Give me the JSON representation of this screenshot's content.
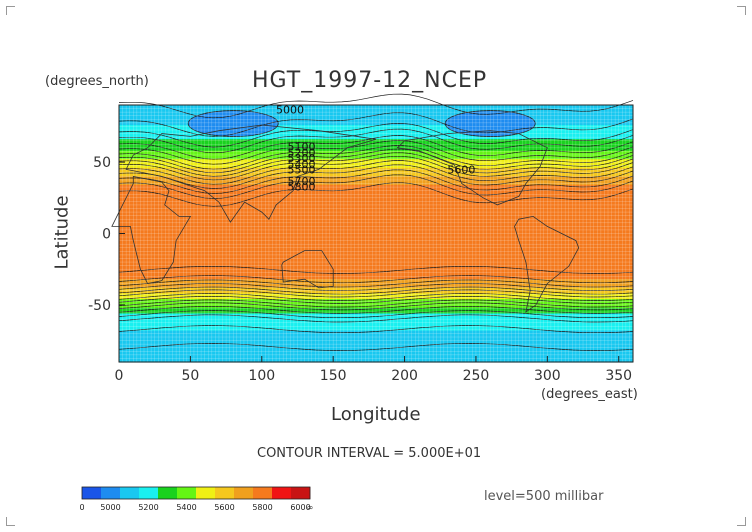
{
  "chart_data": {
    "type": "heatmap",
    "title": "HGT_1997-12_NCEP",
    "xlabel": "Longitude",
    "ylabel": "Latitude",
    "x_units": "(degrees_east)",
    "y_units": "(degrees_north)",
    "xlim": [
      0,
      360
    ],
    "ylim": [
      -90,
      90
    ],
    "x_ticks": [
      0,
      50,
      100,
      150,
      200,
      250,
      300,
      350
    ],
    "y_ticks": [
      50,
      0,
      -50
    ],
    "contour_interval_text": "CONTOUR INTERVAL = 5.000E+01",
    "level_text": "level=500 millibar",
    "contour_labels": [
      "5000",
      "5100",
      "5200",
      "5300",
      "5400",
      "5500",
      "5600",
      "5700",
      "5800"
    ],
    "colorbar": {
      "labels": [
        "0",
        "5000",
        "5200",
        "5400",
        "5600",
        "5800",
        "6000",
        "∞"
      ],
      "bins": [
        {
          "color": "#1a55e8"
        },
        {
          "color": "#1e8cf0"
        },
        {
          "color": "#19c8f0"
        },
        {
          "color": "#19f0f0"
        },
        {
          "color": "#19d21e"
        },
        {
          "color": "#64f514"
        },
        {
          "color": "#f0f014"
        },
        {
          "color": "#f5c81e"
        },
        {
          "color": "#f0a01e"
        },
        {
          "color": "#f57a1e"
        },
        {
          "color": "#f01414"
        },
        {
          "color": "#c81414"
        }
      ]
    },
    "lat_profile": [
      {
        "lat": 90,
        "hgt": 5150
      },
      {
        "lat": 80,
        "hgt": 5180
      },
      {
        "lat": 70,
        "hgt": 5240
      },
      {
        "lat": 60,
        "hgt": 5360
      },
      {
        "lat": 55,
        "hgt": 5430
      },
      {
        "lat": 50,
        "hgt": 5520
      },
      {
        "lat": 45,
        "hgt": 5620
      },
      {
        "lat": 40,
        "hgt": 5700
      },
      {
        "lat": 35,
        "hgt": 5780
      },
      {
        "lat": 30,
        "hgt": 5840
      },
      {
        "lat": 20,
        "hgt": 5880
      },
      {
        "lat": 0,
        "hgt": 5880
      },
      {
        "lat": -20,
        "hgt": 5880
      },
      {
        "lat": -30,
        "hgt": 5830
      },
      {
        "lat": -35,
        "hgt": 5760
      },
      {
        "lat": -40,
        "hgt": 5660
      },
      {
        "lat": -45,
        "hgt": 5540
      },
      {
        "lat": -50,
        "hgt": 5430
      },
      {
        "lat": -55,
        "hgt": 5330
      },
      {
        "lat": -60,
        "hgt": 5250
      },
      {
        "lat": -70,
        "hgt": 5180
      },
      {
        "lat": -80,
        "hgt": 5150
      },
      {
        "lat": -90,
        "hgt": 5150
      }
    ],
    "lows": [
      {
        "lon": 80,
        "lat": 77,
        "hgt": 5000
      },
      {
        "lon": 260,
        "lat": 77,
        "hgt": 5050
      }
    ]
  }
}
